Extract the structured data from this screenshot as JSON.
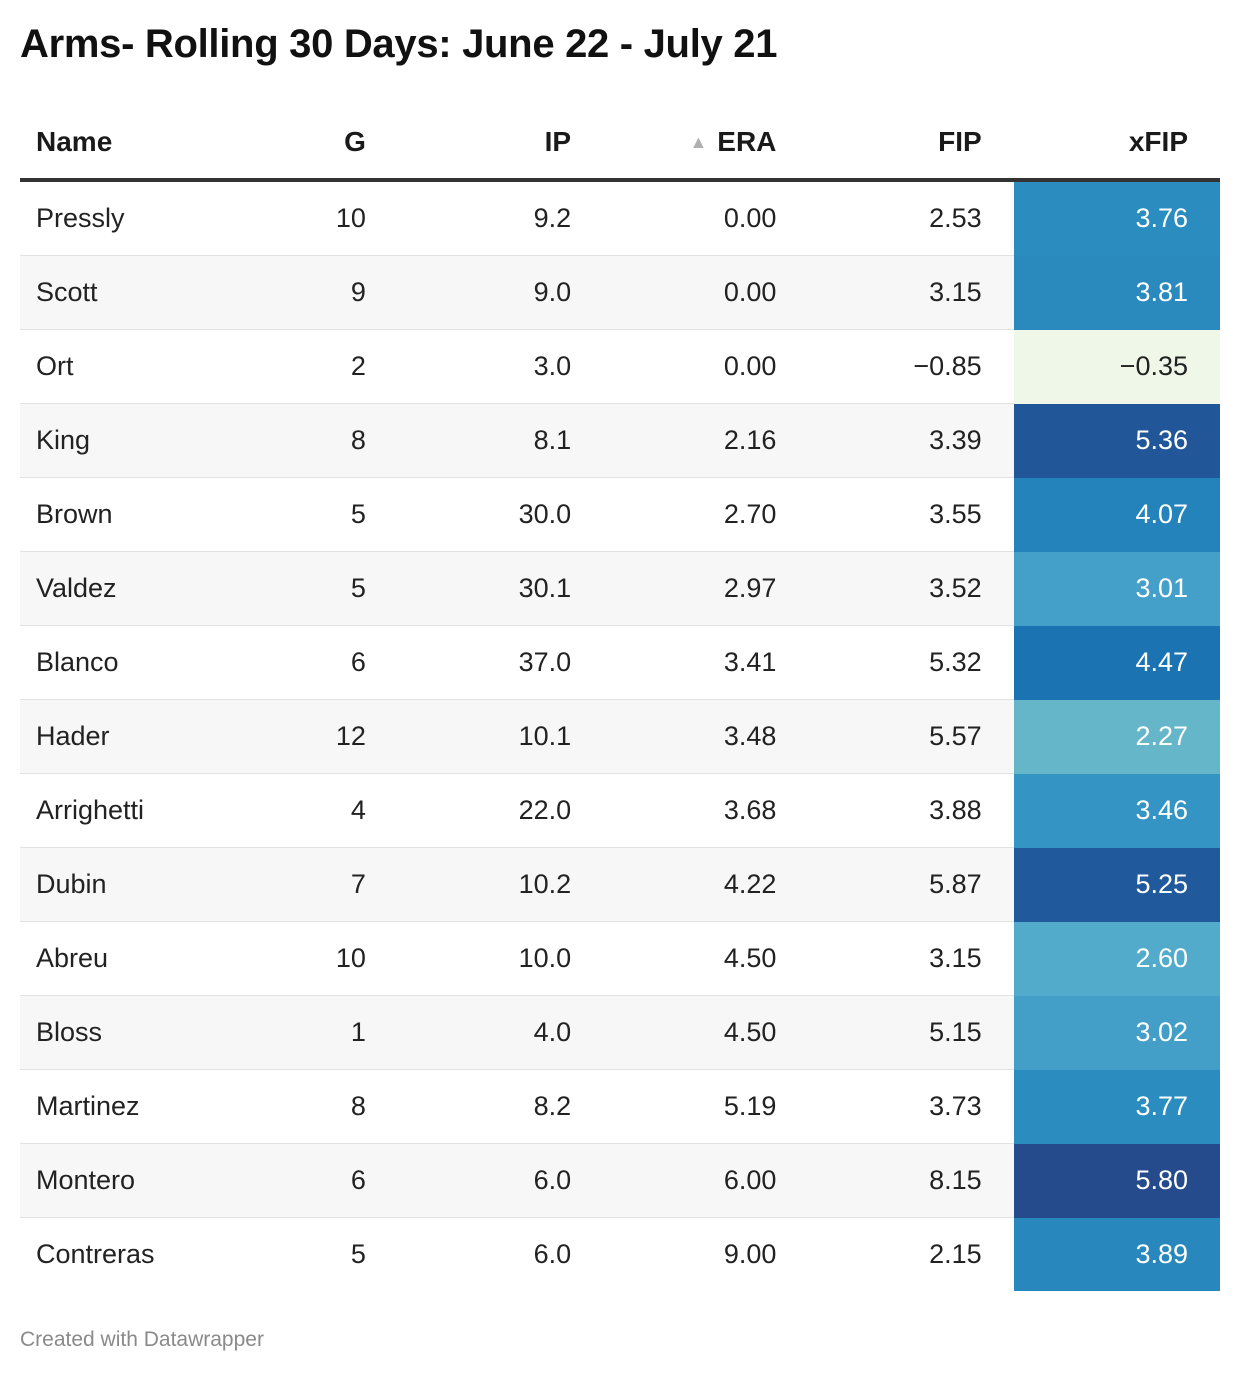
{
  "title": "Arms- Rolling 30 Days: June 22 - July 21",
  "footer": "Created with Datawrapper",
  "chart_data": {
    "type": "table",
    "title": "Arms- Rolling 30 Days: June 22 - July 21",
    "columns": [
      "Name",
      "G",
      "IP",
      "ERA",
      "FIP",
      "xFIP"
    ],
    "sorted_column": "ERA",
    "sort_direction": "ascending",
    "heatmap_column": "xFIP",
    "rows": [
      {
        "Name": "Pressly",
        "G": "10",
        "IP": "9.2",
        "ERA": "0.00",
        "FIP": "2.53",
        "xFIP": "3.76",
        "xfip_color": "#2b8cbf"
      },
      {
        "Name": "Scott",
        "G": "9",
        "IP": "9.0",
        "ERA": "0.00",
        "FIP": "3.15",
        "xFIP": "3.81",
        "xfip_color": "#2a8abe"
      },
      {
        "Name": "Ort",
        "G": "2",
        "IP": "3.0",
        "ERA": "0.00",
        "FIP": "−0.85",
        "xFIP": "−0.35",
        "xfip_color": "#eff8e8"
      },
      {
        "Name": "King",
        "G": "8",
        "IP": "8.1",
        "ERA": "2.16",
        "FIP": "3.39",
        "xFIP": "5.36",
        "xfip_color": "#215699"
      },
      {
        "Name": "Brown",
        "G": "5",
        "IP": "30.0",
        "ERA": "2.70",
        "FIP": "3.55",
        "xFIP": "4.07",
        "xfip_color": "#2383ba"
      },
      {
        "Name": "Valdez",
        "G": "5",
        "IP": "30.1",
        "ERA": "2.97",
        "FIP": "3.52",
        "xFIP": "3.01",
        "xfip_color": "#44a0c8"
      },
      {
        "Name": "Blanco",
        "G": "6",
        "IP": "37.0",
        "ERA": "3.41",
        "FIP": "5.32",
        "xFIP": "4.47",
        "xfip_color": "#1b73b1"
      },
      {
        "Name": "Hader",
        "G": "12",
        "IP": "10.1",
        "ERA": "3.48",
        "FIP": "5.57",
        "xFIP": "2.27",
        "xfip_color": "#64b6c8"
      },
      {
        "Name": "Arrighetti",
        "G": "4",
        "IP": "22.0",
        "ERA": "3.68",
        "FIP": "3.88",
        "xFIP": "3.46",
        "xfip_color": "#3494c4"
      },
      {
        "Name": "Dubin",
        "G": "7",
        "IP": "10.2",
        "ERA": "4.22",
        "FIP": "5.87",
        "xFIP": "5.25",
        "xfip_color": "#205a9c"
      },
      {
        "Name": "Abreu",
        "G": "10",
        "IP": "10.0",
        "ERA": "4.50",
        "FIP": "3.15",
        "xFIP": "2.60",
        "xfip_color": "#53abcb"
      },
      {
        "Name": "Bloss",
        "G": "1",
        "IP": "4.0",
        "ERA": "4.50",
        "FIP": "5.15",
        "xFIP": "3.02",
        "xfip_color": "#439fc8"
      },
      {
        "Name": "Martinez",
        "G": "8",
        "IP": "8.2",
        "ERA": "5.19",
        "FIP": "3.73",
        "xFIP": "3.77",
        "xfip_color": "#2b8cbf"
      },
      {
        "Name": "Montero",
        "G": "6",
        "IP": "6.0",
        "ERA": "6.00",
        "FIP": "8.15",
        "xFIP": "5.80",
        "xfip_color": "#254b8c"
      },
      {
        "Name": "Contreras",
        "G": "5",
        "IP": "6.0",
        "ERA": "9.00",
        "FIP": "2.15",
        "xFIP": "3.89",
        "xfip_color": "#2888bd"
      }
    ]
  }
}
